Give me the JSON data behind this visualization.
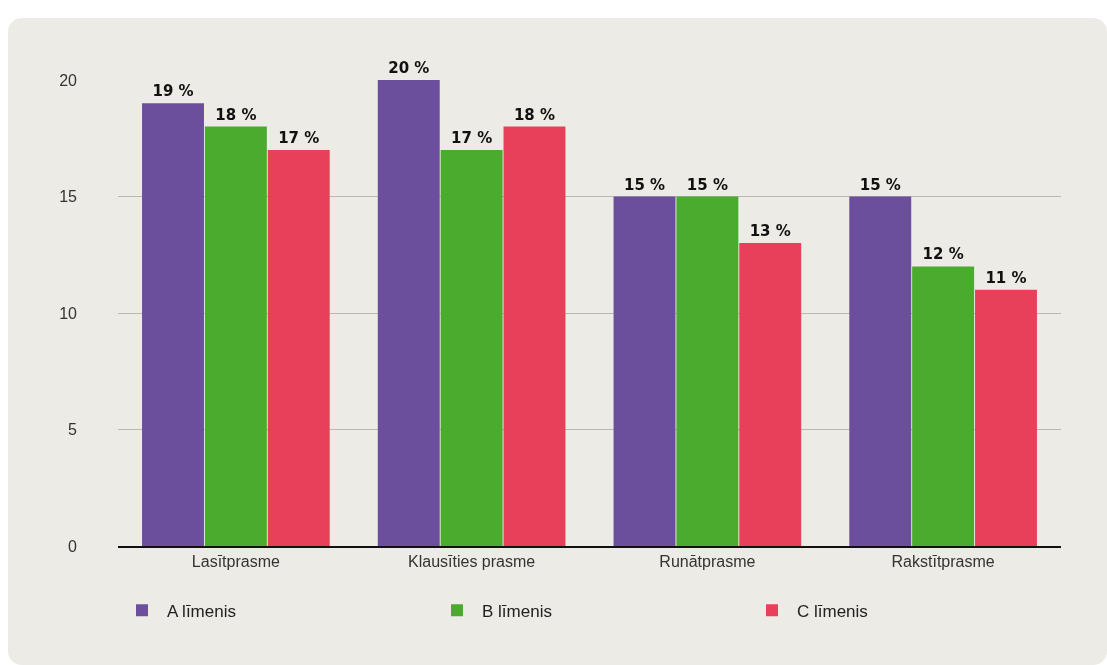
{
  "chart_data": {
    "type": "bar",
    "categories": [
      "Lasītprasme",
      "Klausīties prasme",
      "Runātprasme",
      "Rakstītprasme"
    ],
    "series": [
      {
        "name": "A līmenis",
        "color": "#6c4f9c",
        "values": [
          19,
          20,
          15,
          15
        ],
        "value_labels": [
          "19 %",
          "20 %",
          "15 %",
          "15 %"
        ]
      },
      {
        "name": "B līmenis",
        "color": "#4aab2f",
        "values": [
          18,
          17,
          15,
          12
        ],
        "value_labels": [
          "18 %",
          "17 %",
          "15 %",
          "12 %"
        ]
      },
      {
        "name": "C līmenis",
        "color": "#e8405a",
        "values": [
          17,
          18,
          13,
          11
        ],
        "value_labels": [
          "17 %",
          "18 %",
          "13 %",
          "11 %"
        ]
      }
    ],
    "ylim": [
      0,
      20
    ],
    "yticks": [
      0,
      5,
      10,
      15,
      20
    ],
    "grid": "y",
    "legend": "bottom"
  }
}
